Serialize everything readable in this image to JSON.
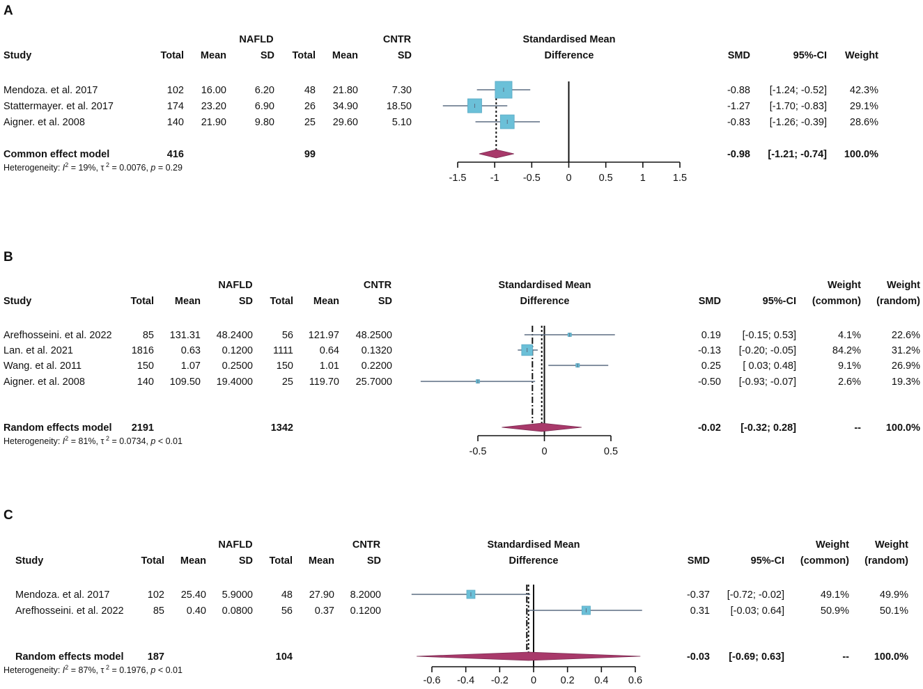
{
  "colors": {
    "box": "#6bc0d8",
    "box_stroke": "#5aa9c4",
    "ci_line": "#5c6d82",
    "diamond": "#a8396a",
    "axis": "#111111"
  },
  "chart_data": [
    {
      "type": "forest",
      "panel": "A",
      "group1": "NAFLD",
      "group2": "CNTR",
      "col_study": "Study",
      "col_total": "Total",
      "col_mean": "Mean",
      "col_sd": "SD",
      "effect_title_1": "Standardised Mean",
      "effect_title_2": "Difference",
      "col_smd": "SMD",
      "col_ci": "95%-CI",
      "weight_cols": [
        {
          "l1": "",
          "l2": "Weight"
        }
      ],
      "xlim": [
        -1.5,
        1.5
      ],
      "ticks": [
        -1.5,
        -1,
        -0.5,
        0,
        0.5,
        1,
        1.5
      ],
      "tick_labels": [
        "-1.5",
        "-1",
        "-0.5",
        "0",
        "0.5",
        "1",
        "1.5"
      ],
      "studies": [
        {
          "name": "Mendoza. et al.  2017",
          "n1": "102",
          "m1": "16.00",
          "sd1": "6.20",
          "n2": "48",
          "m2": "21.80",
          "sd2": "7.30",
          "smd": -0.88,
          "lo": -1.24,
          "hi": -0.52,
          "smd_text": "-0.88",
          "ci_text": "[-1.24; -0.52]",
          "weights": [
            "42.3%"
          ],
          "w": 42.3
        },
        {
          "name": "Stattermayer. et al. 2017",
          "n1": "174",
          "m1": "23.20",
          "sd1": "6.90",
          "n2": "26",
          "m2": "34.90",
          "sd2": "18.50",
          "smd": -1.27,
          "lo": -1.7,
          "hi": -0.83,
          "smd_text": "-1.27",
          "ci_text": "[-1.70; -0.83]",
          "weights": [
            "29.1%"
          ],
          "w": 29.1
        },
        {
          "name": "Aigner. et al. 2008",
          "n1": "140",
          "m1": "21.90",
          "sd1": "9.80",
          "n2": "25",
          "m2": "29.60",
          "sd2": "5.10",
          "smd": -0.83,
          "lo": -1.26,
          "hi": -0.39,
          "smd_text": "-0.83",
          "ci_text": "[-1.26; -0.39]",
          "weights": [
            "28.6%"
          ],
          "w": 28.6
        }
      ],
      "summary": {
        "label": "Common effect model",
        "n1": "416",
        "n2": "99",
        "est": -0.98,
        "lo": -1.21,
        "hi": -0.74,
        "smd_text": "-0.98",
        "ci_text": "[-1.21; -0.74]",
        "weights": [
          "100.0%"
        ]
      },
      "heterogeneity": {
        "i2": "19%",
        "tau2": "0.0076",
        "p": "= 0.29"
      },
      "ref_line": -0.98
    },
    {
      "type": "forest",
      "panel": "B",
      "group1": "NAFLD",
      "group2": "CNTR",
      "col_study": "Study",
      "col_total": "Total",
      "col_mean": "Mean",
      "col_sd": "SD",
      "effect_title_1": "Standardised Mean",
      "effect_title_2": "Difference",
      "col_smd": "SMD",
      "col_ci": "95%-CI",
      "weight_cols": [
        {
          "l1": "Weight",
          "l2": "(common)"
        },
        {
          "l1": "Weight",
          "l2": "(random)"
        }
      ],
      "xlim": [
        -0.5,
        0.5
      ],
      "ticks": [
        -0.5,
        0,
        0.5
      ],
      "tick_labels": [
        "-0.5",
        "0",
        "0.5"
      ],
      "studies": [
        {
          "name": "Arefhosseini. et al. 2022",
          "n1": "85",
          "m1": "131.31",
          "sd1": "48.2400",
          "n2": "56",
          "m2": "121.97",
          "sd2": "48.2500",
          "smd": 0.19,
          "lo": -0.15,
          "hi": 0.53,
          "smd_text": "0.19",
          "ci_text": "[-0.15;  0.53]",
          "weights": [
            "4.1%",
            "22.6%"
          ],
          "w": 4.1
        },
        {
          "name": "Lan. et al. 2021",
          "n1": "1816",
          "m1": "0.63",
          "sd1": "0.1200",
          "n2": "1111",
          "m2": "0.64",
          "sd2": "0.1320",
          "smd": -0.13,
          "lo": -0.2,
          "hi": -0.05,
          "smd_text": "-0.13",
          "ci_text": "[-0.20; -0.05]",
          "weights": [
            "84.2%",
            "31.2%"
          ],
          "w": 84.2
        },
        {
          "name": "Wang. et al.  2011",
          "n1": "150",
          "m1": "1.07",
          "sd1": "0.2500",
          "n2": "150",
          "m2": "1.01",
          "sd2": "0.2200",
          "smd": 0.25,
          "lo": 0.03,
          "hi": 0.48,
          "smd_text": "0.25",
          "ci_text": "[ 0.03;  0.48]",
          "weights": [
            "9.1%",
            "26.9%"
          ],
          "w": 9.1
        },
        {
          "name": "Aigner. et al. 2008",
          "n1": "140",
          "m1": "109.50",
          "sd1": "19.4000",
          "n2": "25",
          "m2": "119.70",
          "sd2": "25.7000",
          "smd": -0.5,
          "lo": -0.93,
          "hi": -0.07,
          "smd_text": "-0.50",
          "ci_text": "[-0.93; -0.07]",
          "weights": [
            "2.6%",
            "19.3%"
          ],
          "w": 2.6
        }
      ],
      "summary": {
        "label": "Random effects model",
        "n1": "2191",
        "n2": "1342",
        "est": -0.02,
        "lo": -0.32,
        "hi": 0.28,
        "smd_text": "-0.02",
        "ci_text": "[-0.32;  0.28]",
        "weights": [
          "--",
          "100.0%"
        ]
      },
      "heterogeneity": {
        "i2": "81%",
        "tau2": "0.0734",
        "p": "< 0.01"
      },
      "ref_line": -0.02,
      "common_line": -0.09
    },
    {
      "type": "forest",
      "panel": "C",
      "group1": "NAFLD",
      "group2": "CNTR",
      "col_study": "Study",
      "col_total": "Total",
      "col_mean": "Mean",
      "col_sd": "SD",
      "effect_title_1": "Standardised Mean",
      "effect_title_2": "Difference",
      "col_smd": "SMD",
      "col_ci": "95%-CI",
      "weight_cols": [
        {
          "l1": "Weight",
          "l2": "(common)"
        },
        {
          "l1": "Weight",
          "l2": "(random)"
        }
      ],
      "xlim": [
        -0.6,
        0.6
      ],
      "ticks": [
        -0.6,
        -0.4,
        -0.2,
        0,
        0.2,
        0.4,
        0.6
      ],
      "tick_labels": [
        "-0.6",
        "-0.4",
        "-0.2",
        "0",
        "0.2",
        "0.4",
        "0.6"
      ],
      "studies": [
        {
          "name": "Mendoza. et al.  2017",
          "n1": "102",
          "m1": "25.40",
          "sd1": "5.9000",
          "n2": "48",
          "m2": "27.90",
          "sd2": "8.2000",
          "smd": -0.37,
          "lo": -0.72,
          "hi": -0.02,
          "smd_text": "-0.37",
          "ci_text": "[-0.72; -0.02]",
          "weights": [
            "49.1%",
            "49.9%"
          ],
          "w": 49.1
        },
        {
          "name": "Arefhosseini. et al. 2022",
          "n1": "85",
          "m1": "0.40",
          "sd1": "0.0800",
          "n2": "56",
          "m2": "0.37",
          "sd2": "0.1200",
          "smd": 0.31,
          "lo": -0.03,
          "hi": 0.64,
          "smd_text": "0.31",
          "ci_text": "[-0.03;  0.64]",
          "weights": [
            "50.9%",
            "50.1%"
          ],
          "w": 50.9
        }
      ],
      "summary": {
        "label": "Random effects model",
        "n1": "187",
        "n2": "104",
        "est": -0.03,
        "lo": -0.69,
        "hi": 0.63,
        "smd_text": "-0.03",
        "ci_text": "[-0.69;  0.63]",
        "weights": [
          "--",
          "100.0%"
        ]
      },
      "heterogeneity": {
        "i2": "87%",
        "tau2": "0.1976",
        "p": "< 0.01"
      },
      "ref_line": -0.03,
      "common_line": -0.04
    }
  ]
}
